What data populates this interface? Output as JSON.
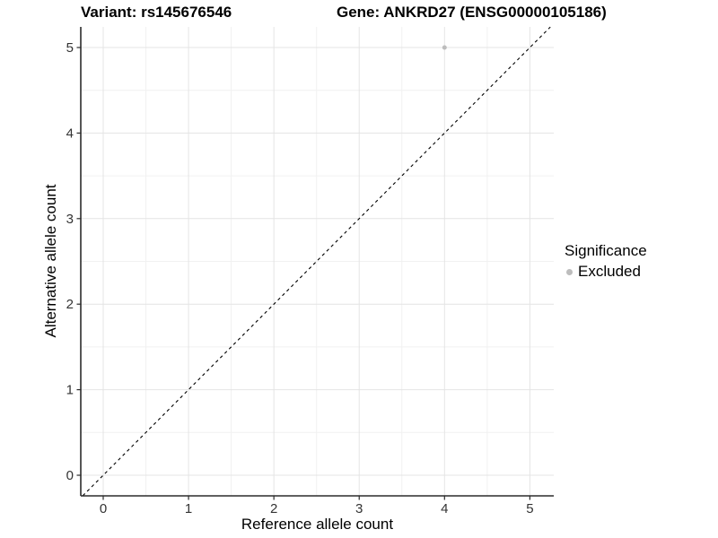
{
  "chart_data": {
    "type": "scatter",
    "title_variant": "Variant: rs145676546",
    "title_gene": "Gene: ANKRD27 (ENSG00000105186)",
    "xlabel": "Reference allele count",
    "ylabel": "Alternative allele count",
    "x_ticks": [
      0,
      1,
      2,
      3,
      4,
      5
    ],
    "y_ticks": [
      0,
      1,
      2,
      3,
      4,
      5
    ],
    "xlim": [
      -0.263,
      5.28
    ],
    "ylim": [
      -0.241,
      5.241
    ],
    "grid": true,
    "points": [
      {
        "x": 4,
        "y": 5,
        "significance": "Excluded",
        "color": "#bdbdbd"
      }
    ],
    "identity_line": {
      "style": "dashed",
      "color": "#000000",
      "from": [
        -0.24,
        -0.24
      ],
      "to": [
        5.24,
        5.24
      ]
    },
    "legend": {
      "title": "Significance",
      "position": "right",
      "items": [
        {
          "label": "Excluded",
          "color": "#bdbdbd"
        }
      ]
    },
    "colors": {
      "grid_major": "#e4e4e4",
      "grid_minor": "#f1f1f1",
      "axis": "#2b2b2b",
      "tick_text": "#333333"
    }
  }
}
